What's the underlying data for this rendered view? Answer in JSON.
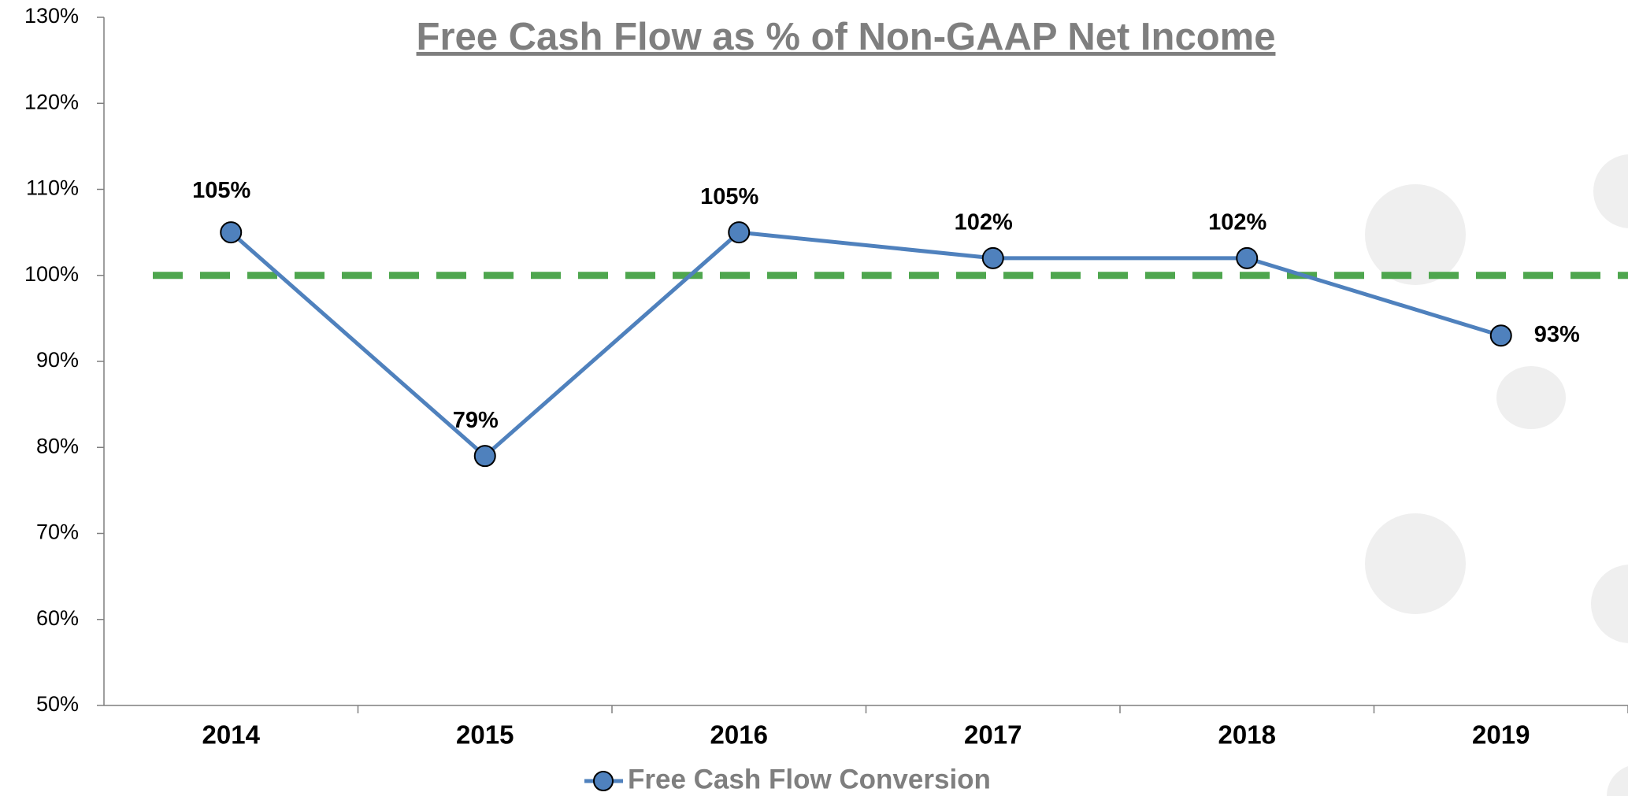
{
  "chart_data": {
    "type": "line",
    "title": "Free Cash Flow as % of Non-GAAP Net Income",
    "categories": [
      "2014",
      "2015",
      "2016",
      "2017",
      "2018",
      "2019"
    ],
    "series": [
      {
        "name": "Free Cash Flow Conversion",
        "color": "#4f81bd",
        "values": [
          105,
          79,
          105,
          102,
          102,
          93
        ],
        "value_labels": [
          "105%",
          "79%",
          "105%",
          "102%",
          "102%",
          "93%"
        ]
      }
    ],
    "reference_line": {
      "value": 100,
      "color": "#4ea64e"
    },
    "ylim": [
      50,
      130
    ],
    "yticks": [
      {
        "value": 50,
        "label": "50%"
      },
      {
        "value": 60,
        "label": "60%"
      },
      {
        "value": 70,
        "label": "70%"
      },
      {
        "value": 80,
        "label": "80%"
      },
      {
        "value": 90,
        "label": "90%"
      },
      {
        "value": 100,
        "label": "100%"
      },
      {
        "value": 110,
        "label": "110%"
      },
      {
        "value": 120,
        "label": "120%"
      },
      {
        "value": 130,
        "label": "130%"
      }
    ],
    "legend": "bottom"
  }
}
